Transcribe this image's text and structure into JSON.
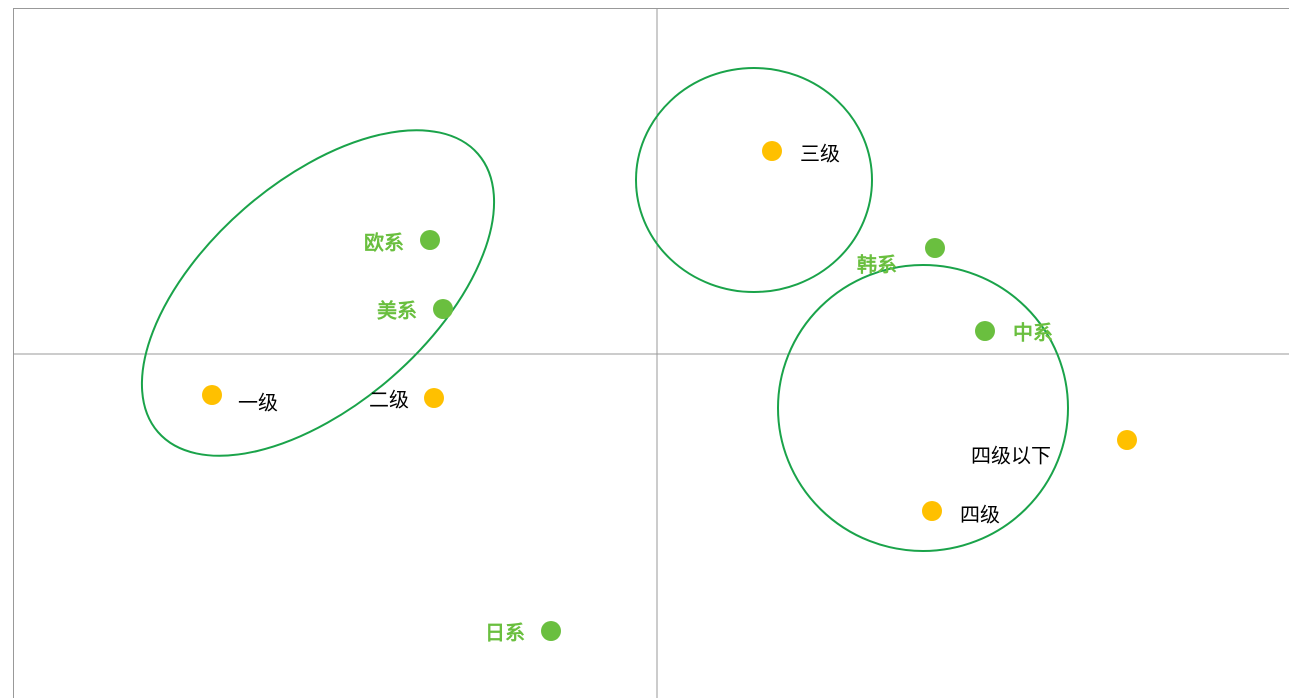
{
  "points": [
    {
      "label": "欧系"
    },
    {
      "label": "美系"
    },
    {
      "label": "韩系"
    },
    {
      "label": "中系"
    },
    {
      "label": "日系"
    },
    {
      "label": "一级"
    },
    {
      "label": "二级"
    },
    {
      "label": "三级"
    },
    {
      "label": "四级以下"
    },
    {
      "label": "四级"
    }
  ]
}
